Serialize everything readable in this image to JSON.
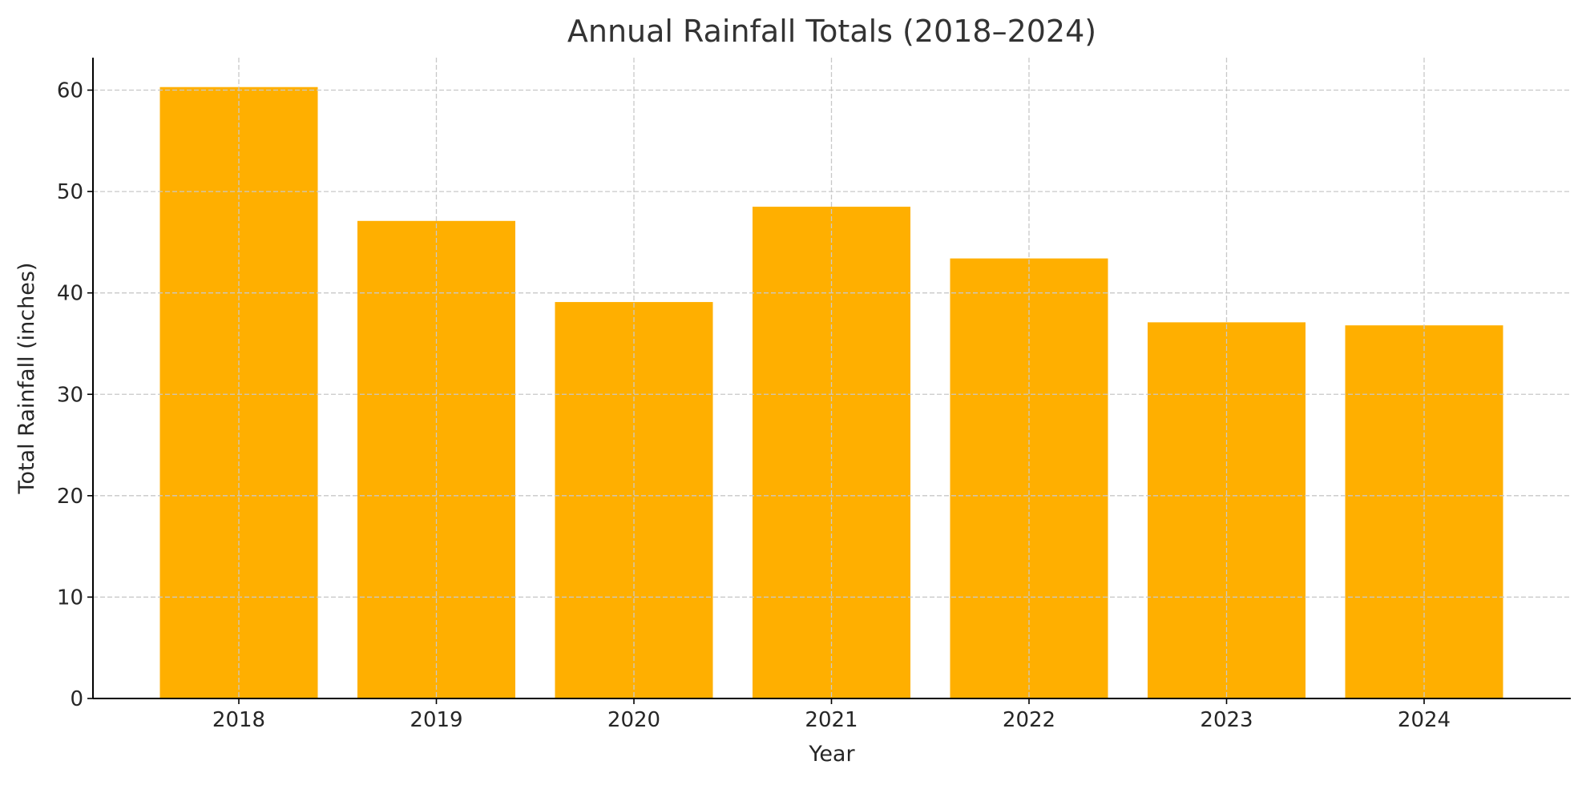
{
  "chart_data": {
    "type": "bar",
    "title": "Annual Rainfall Totals (2018–2024)",
    "xlabel": "Year",
    "ylabel": "Total Rainfall (inches)",
    "categories": [
      "2018",
      "2019",
      "2020",
      "2021",
      "2022",
      "2023",
      "2024"
    ],
    "values": [
      60.3,
      47.1,
      39.1,
      48.5,
      43.4,
      37.1,
      36.8
    ],
    "ylim": [
      0,
      63.2
    ],
    "yticks": [
      0,
      10,
      20,
      30,
      40,
      50,
      60
    ],
    "grid": true,
    "bar_color": "#FFAF00",
    "grid_color": "#c8c8c8"
  }
}
